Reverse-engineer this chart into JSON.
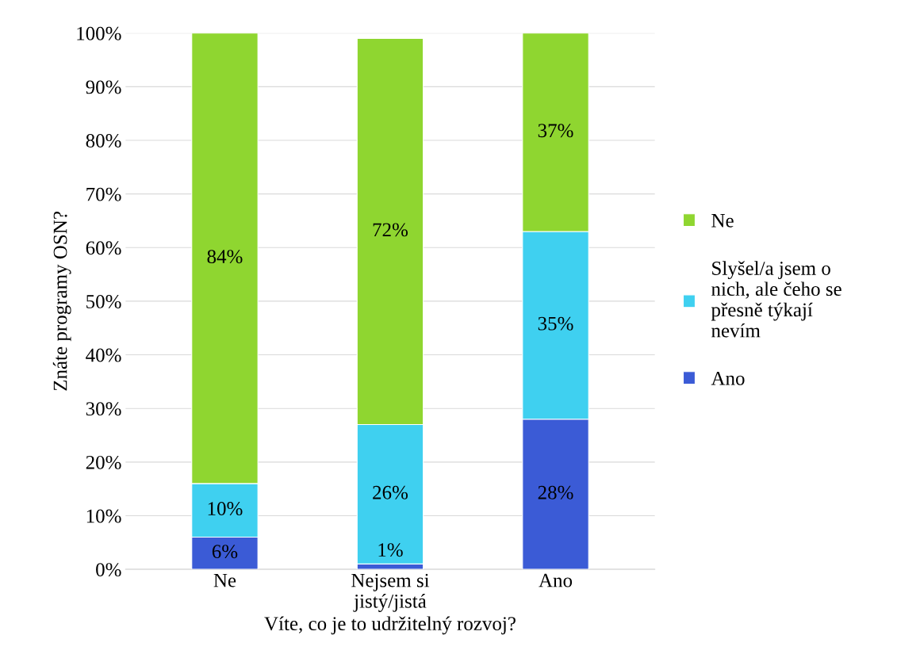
{
  "chart_data": {
    "type": "bar",
    "stacked": true,
    "xlabel": "Víte, co je to udržitelný rozvoj?",
    "ylabel": "Znáte programy OSN?",
    "categories": [
      "Ne",
      "Nejsem si\njistý/jistá",
      "Ano"
    ],
    "series": [
      {
        "name": "Ano",
        "color": "#3b5bd6",
        "values": [
          6,
          1,
          28
        ],
        "value_labels": [
          "6%",
          "1%",
          "28%"
        ]
      },
      {
        "name": "Slyšel/a jsem o\nnich, ale čeho se\npřesně týkají\nnevím",
        "color": "#3fd0f0",
        "values": [
          10,
          26,
          35
        ],
        "value_labels": [
          "10%",
          "26%",
          "35%"
        ]
      },
      {
        "name": "Ne",
        "color": "#8fd630",
        "values": [
          84,
          72,
          37
        ],
        "value_labels": [
          "84%",
          "72%",
          "37%"
        ]
      }
    ],
    "ylim": [
      0,
      100
    ],
    "yticks": [
      {
        "value": 0,
        "label": "0%"
      },
      {
        "value": 10,
        "label": "10%"
      },
      {
        "value": 20,
        "label": "20%"
      },
      {
        "value": 30,
        "label": "30%"
      },
      {
        "value": 40,
        "label": "40%"
      },
      {
        "value": 50,
        "label": "50%"
      },
      {
        "value": 60,
        "label": "60%"
      },
      {
        "value": 70,
        "label": "70%"
      },
      {
        "value": 80,
        "label": "80%"
      },
      {
        "value": 90,
        "label": "90%"
      },
      {
        "value": 100,
        "label": "100%"
      }
    ],
    "grid": "y",
    "legend": "right"
  }
}
